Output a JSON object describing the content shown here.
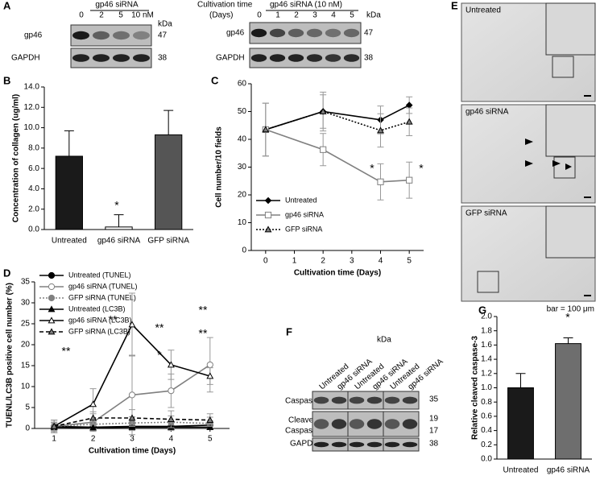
{
  "panel_labels": [
    "A",
    "B",
    "C",
    "D",
    "E",
    "F",
    "G"
  ],
  "blot_a1": {
    "header": "gp46 siRNA",
    "lanes": [
      "0",
      "2",
      "5",
      "10 nM"
    ],
    "unit": "kDa",
    "rows": [
      {
        "label": "gp46",
        "kda": [
          "47"
        ]
      },
      {
        "label": "GAPDH",
        "kda": [
          "38"
        ]
      }
    ]
  },
  "blot_a2": {
    "axis_label": [
      "Cultivation time",
      "(Days)"
    ],
    "header": "gp46 siRNA (10 nM)",
    "lanes": [
      "0",
      "1",
      "2",
      "3",
      "4",
      "5"
    ],
    "unit": "kDa",
    "rows": [
      {
        "label": "gp46",
        "kda": [
          "47"
        ]
      },
      {
        "label": "GAPDH",
        "kda": [
          "38"
        ]
      }
    ]
  },
  "blot_f": {
    "lanes": [
      "Untreated",
      "gp46 siRNA",
      "Untreated",
      "gp46 siRNA",
      "Untreated",
      "gp46 siRNA"
    ],
    "unit": "kDa",
    "rows": [
      {
        "label": [
          "Caspase-3"
        ],
        "kda": [
          "35"
        ]
      },
      {
        "label": [
          "Cleaved",
          "Caspase-3"
        ],
        "kda": [
          "19",
          "17"
        ]
      },
      {
        "label": [
          "GAPDH"
        ],
        "kda": [
          "38"
        ]
      }
    ]
  },
  "images_e": {
    "panels": [
      "Untreated",
      "gp46 siRNA",
      "GFP siRNA"
    ],
    "scale": "bar = 100 μm"
  },
  "chart_data": [
    {
      "type": "bar",
      "ylabel": "Concentration of collagen (ug/ml)",
      "categories": [
        "Untreated",
        "gp46 siRNA",
        "GFP siRNA"
      ],
      "values": [
        7.2,
        0.25,
        9.3
      ],
      "errors": [
        2.5,
        1.2,
        2.4
      ],
      "colors": [
        "#1a1a1a",
        "#ffffff",
        "#555555"
      ],
      "ylim": [
        0,
        14
      ],
      "yticks": [
        {
          "value": 0,
          "label": "0.0"
        },
        {
          "value": 2,
          "label": "2.0"
        },
        {
          "value": 4,
          "label": "4.0"
        },
        {
          "value": 6,
          "label": "6.0"
        },
        {
          "value": 8,
          "label": "8.0"
        },
        {
          "value": 10,
          "label": "10.0"
        },
        {
          "value": 12,
          "label": "12.0"
        },
        {
          "value": 14,
          "label": "14.0"
        }
      ],
      "annotations": [
        "*"
      ]
    },
    {
      "type": "line",
      "xlabel": "Cultivation time (Days)",
      "ylabel": "Cell number/10 fields",
      "x": [
        0,
        2,
        4,
        5
      ],
      "xlim": [
        -0.5,
        5.5
      ],
      "xticks": [
        0,
        1,
        2,
        3,
        4,
        5
      ],
      "ylim": [
        0,
        60
      ],
      "yticks": [
        0,
        10,
        20,
        30,
        40,
        50,
        60
      ],
      "legend": "lower left",
      "series": [
        {
          "name": "Untreated",
          "color": "#000000",
          "marker": "diamond",
          "marker_fill": "#000000",
          "line_style": "solid",
          "values": [
            43.5,
            50,
            47,
            52.3
          ],
          "errors": [
            9.5,
            7,
            5,
            3
          ]
        },
        {
          "name": "gp46 siRNA",
          "color": "#808080",
          "marker": "square",
          "marker_fill": "#ffffff",
          "line_style": "solid",
          "values": [
            43.5,
            36.3,
            24.7,
            25.3
          ],
          "errors": [
            9.5,
            5.8,
            6.5,
            6.5
          ]
        },
        {
          "name": "GFP siRNA",
          "color": "#000000",
          "marker": "triangle",
          "marker_fill": "#808080",
          "line_style": "dotted",
          "values": [
            43.5,
            50,
            43.2,
            46.3
          ],
          "errors": [
            9.5,
            6,
            6,
            5
          ]
        }
      ],
      "annotations": [
        "*",
        "*"
      ]
    },
    {
      "type": "line",
      "xlabel": "Cultivation time (Days)",
      "ylabel": "TUENL/LC3B positive cell number (%)",
      "x": [
        1,
        2,
        3,
        4,
        5
      ],
      "xlim": [
        0.5,
        5.5
      ],
      "xticks": [
        1,
        2,
        3,
        4,
        5
      ],
      "ylim": [
        0,
        35
      ],
      "yticks": [
        0,
        5,
        10,
        15,
        20,
        25,
        30,
        35
      ],
      "legend": "upper left",
      "series": [
        {
          "name": "Untreated (TUNEL)",
          "color": "#000000",
          "marker": "circle",
          "marker_fill": "#000000",
          "line_style": "solid",
          "values": [
            0.5,
            0.3,
            0.5,
            0.5,
            0.8
          ],
          "errors": [
            1.5,
            1,
            1,
            1,
            1
          ]
        },
        {
          "name": "gp46 siRNA (TUNEL)",
          "color": "#808080",
          "marker": "circle",
          "marker_fill": "#ffffff",
          "line_style": "solid",
          "values": [
            0.5,
            1.5,
            8,
            9,
            15.2
          ],
          "errors": [
            1.5,
            2,
            9.5,
            4,
            6.5
          ]
        },
        {
          "name": "GFP siRNA (TUNEL)",
          "color": "#808080",
          "marker": "circle",
          "marker_fill": "#808080",
          "line_style": "dotted",
          "values": [
            0.5,
            1,
            1.3,
            1.5,
            1.2
          ],
          "errors": [
            1,
            1,
            1.5,
            1.5,
            1.5
          ]
        },
        {
          "name": "Untreated (LC3B)",
          "color": "#000000",
          "marker": "triangle",
          "marker_fill": "#000000",
          "line_style": "solid",
          "values": [
            0.3,
            0.2,
            0.3,
            0.3,
            0.3
          ],
          "errors": [
            1,
            0.5,
            0.5,
            0.5,
            0.5
          ]
        },
        {
          "name": "gp46 siRNA (LC3B)",
          "color": "#000000",
          "marker": "triangle",
          "marker_fill": "#ffffff",
          "line_style": "solid",
          "values": [
            0.5,
            5.8,
            24.8,
            15.2,
            12.5
          ],
          "errors": [
            1.5,
            3.7,
            7.5,
            3.5,
            2
          ]
        },
        {
          "name": "GFP siRNA (LC3B)",
          "color": "#000000",
          "marker": "triangle",
          "marker_fill": "#808080",
          "line_style": "dashed",
          "values": [
            0.5,
            2.5,
            2.5,
            2.2,
            2
          ],
          "errors": [
            1,
            1.5,
            2,
            2,
            1.5
          ]
        }
      ],
      "annotations": [
        "**",
        "**",
        "**",
        "*",
        "**",
        "**"
      ]
    },
    {
      "type": "bar",
      "ylabel": "Relative cleaved caspase-3",
      "categories": [
        "Untreated",
        "gp46 siRNA"
      ],
      "values": [
        1.0,
        1.62
      ],
      "errors": [
        0.2,
        0.08
      ],
      "colors": [
        "#1a1a1a",
        "#6e6e6e"
      ],
      "ylim": [
        0,
        2
      ],
      "yticks": [
        {
          "value": 0,
          "label": "0.0"
        },
        {
          "value": 0.2,
          "label": "0.2"
        },
        {
          "value": 0.4,
          "label": "0.4"
        },
        {
          "value": 0.6,
          "label": "0.6"
        },
        {
          "value": 0.8,
          "label": "0.8"
        },
        {
          "value": 1,
          "label": "1.0"
        },
        {
          "value": 1.2,
          "label": "1.2"
        },
        {
          "value": 1.4,
          "label": "1.4"
        },
        {
          "value": 1.6,
          "label": "1.6"
        },
        {
          "value": 1.8,
          "label": "1.8"
        },
        {
          "value": 2,
          "label": "2.0"
        }
      ],
      "annotations": [
        "*"
      ]
    }
  ]
}
